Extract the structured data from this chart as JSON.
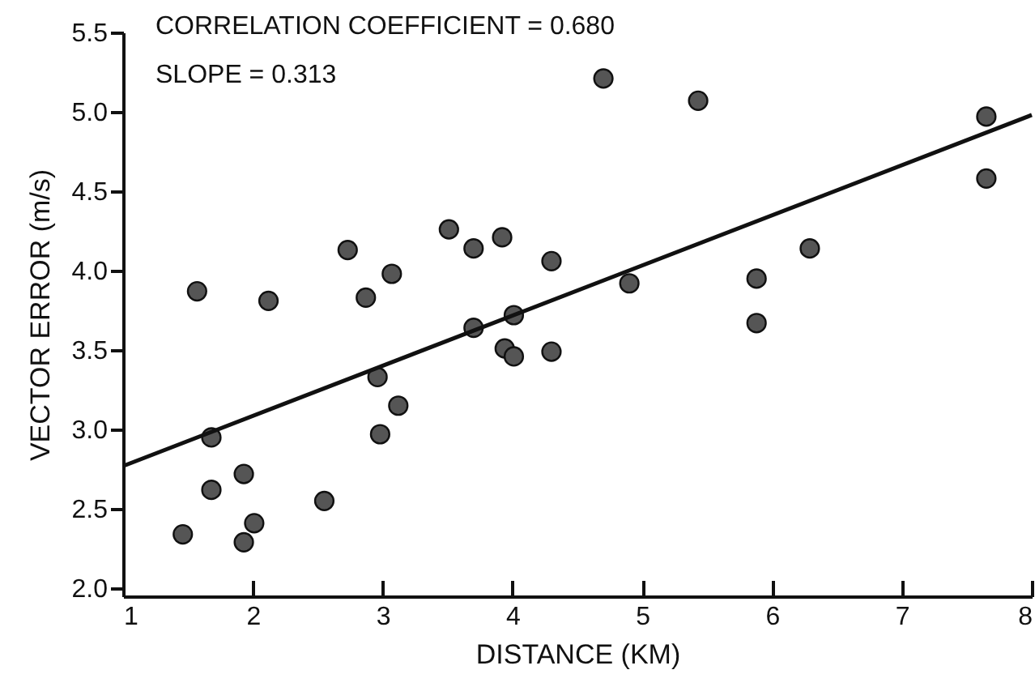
{
  "chart_data": {
    "type": "scatter",
    "xlabel": "DISTANCE (KM)",
    "ylabel": "VECTOR ERROR (m/s)",
    "annotations": [
      "CORRELATION COEFFICIENT = 0.680",
      "SLOPE = 0.313"
    ],
    "xlim": [
      1,
      8
    ],
    "xticks": [
      1,
      2,
      3,
      4,
      5,
      6,
      7,
      8
    ],
    "ylim": [
      1.95,
      5.5
    ],
    "yticks": [
      {
        "value": 2,
        "label": "2.0"
      },
      {
        "value": 2.5,
        "label": "2.5"
      },
      {
        "value": 3,
        "label": "3.0"
      },
      {
        "value": 3.5,
        "label": "3.5"
      },
      {
        "value": 4,
        "label": "4.0"
      },
      {
        "value": 4.5,
        "label": "4.5"
      },
      {
        "value": 5,
        "label": "5.0"
      },
      {
        "value": 5.5,
        "label": "5.5"
      }
    ],
    "grid": false,
    "marker": "circle",
    "series": [
      {
        "color": "#555555",
        "x": [
          1.46,
          1.68,
          1.68,
          1.93,
          1.93,
          2.01,
          2.55,
          2.96,
          2.98,
          3.12,
          3.7,
          3.94,
          4.01,
          4.01,
          4.3,
          2.12,
          2.87,
          1.57,
          2.73,
          3.07,
          3.51,
          3.7,
          3.92,
          4.3,
          4.7,
          5.43,
          4.9,
          5.88,
          5.88,
          6.29,
          7.65,
          7.65
        ],
        "values": [
          2.34,
          2.62,
          2.95,
          2.72,
          2.29,
          2.41,
          2.55,
          3.33,
          2.97,
          3.15,
          3.64,
          3.51,
          3.46,
          3.72,
          3.49,
          3.81,
          3.83,
          3.87,
          4.13,
          3.98,
          4.26,
          4.14,
          4.21,
          4.06,
          5.21,
          5.07,
          3.92,
          3.95,
          3.67,
          4.14,
          4.97,
          4.58
        ]
      },
      {
        "type": "line",
        "color": "#111111",
        "line_style": "solid",
        "marker": "none",
        "x": [
          1,
          8
        ],
        "values": [
          2.77,
          4.98
        ]
      }
    ]
  }
}
